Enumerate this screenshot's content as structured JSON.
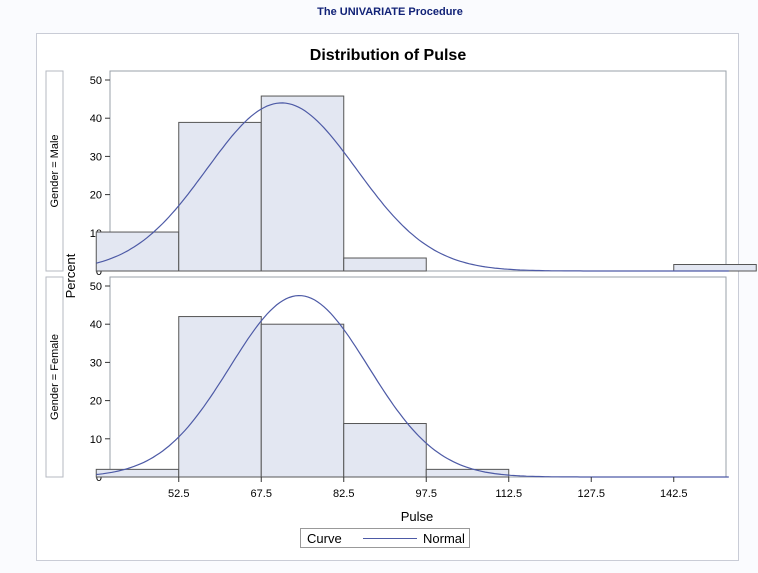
{
  "header": {
    "procedure_title": "The UNIVARIATE Procedure"
  },
  "chart_data": {
    "type": "histogram",
    "title": "Distribution of Pulse",
    "xlabel": "Pulse",
    "ylabel": "Percent",
    "x_ticks": [
      52.5,
      67.5,
      82.5,
      97.5,
      112.5,
      127.5,
      142.5
    ],
    "xlim": [
      40,
      152
    ],
    "ylim": [
      0,
      50
    ],
    "y_ticks": [
      0,
      10,
      20,
      30,
      40,
      50
    ],
    "bin_width": 15,
    "panels": [
      {
        "label": "Gender = Male",
        "bins": [
          {
            "mid": 45,
            "value": 10.2
          },
          {
            "mid": 60,
            "value": 38.9
          },
          {
            "mid": 75,
            "value": 45.8
          },
          {
            "mid": 90,
            "value": 3.4
          },
          {
            "mid": 105,
            "value": 0
          },
          {
            "mid": 120,
            "value": 0
          },
          {
            "mid": 135,
            "value": 0
          },
          {
            "mid": 150,
            "value": 1.7
          }
        ],
        "normal_curve": {
          "mean": 71.2,
          "sd": 13.6
        }
      },
      {
        "label": "Gender = Female",
        "bins": [
          {
            "mid": 45,
            "value": 2
          },
          {
            "mid": 60,
            "value": 42
          },
          {
            "mid": 75,
            "value": 40
          },
          {
            "mid": 90,
            "value": 14
          },
          {
            "mid": 105,
            "value": 2
          },
          {
            "mid": 120,
            "value": 0
          },
          {
            "mid": 135,
            "value": 0
          },
          {
            "mid": 150,
            "value": 0
          }
        ],
        "normal_curve": {
          "mean": 74.4,
          "sd": 12.6
        }
      }
    ],
    "legend": {
      "title": "Curve",
      "entries": [
        "Normal"
      ],
      "position": "bottom"
    },
    "colors": {
      "bar_fill": "#e3e7f2",
      "bar_stroke": "#555555",
      "curve": "#4d5aa6"
    }
  }
}
